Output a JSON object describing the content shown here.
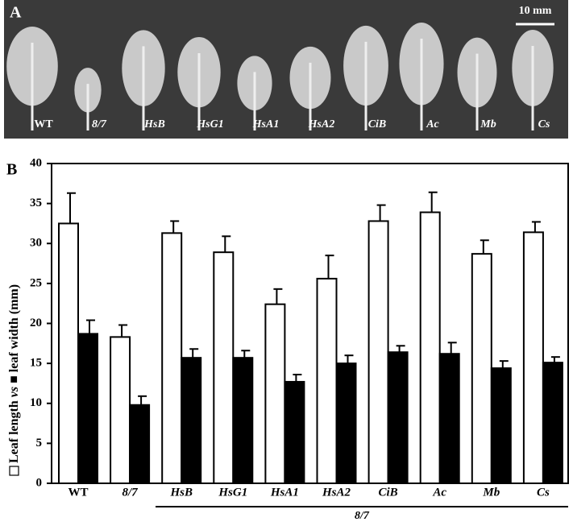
{
  "chart_data": {
    "type": "bar",
    "panel_labels": [
      "A",
      "B"
    ],
    "scale_bar": "10 mm",
    "categories": [
      "WT",
      "8/7",
      "HsB",
      "HsG1",
      "HsA1",
      "HsA2",
      "CiB",
      "Ac",
      "Mb",
      "Cs"
    ],
    "group_label": "8/7",
    "ylabel_joiner": "vs",
    "series": [
      {
        "name": "Leaf length",
        "color": "#ffffff",
        "values": [
          32.5,
          18.3,
          31.3,
          28.9,
          22.4,
          25.6,
          32.8,
          33.9,
          28.7,
          31.4
        ],
        "errors": [
          3.8,
          1.5,
          1.5,
          2.0,
          1.9,
          2.9,
          2.0,
          2.5,
          1.7,
          1.3
        ]
      },
      {
        "name": "leaf width (mm)",
        "color": "#000000",
        "values": [
          18.7,
          9.8,
          15.7,
          15.7,
          12.7,
          15.0,
          16.4,
          16.2,
          14.4,
          15.1
        ],
        "errors": [
          1.7,
          1.1,
          1.1,
          0.9,
          0.9,
          1.0,
          0.8,
          1.4,
          0.9,
          0.7
        ]
      }
    ],
    "ylim": [
      0,
      40
    ],
    "yticks": [
      0,
      5,
      10,
      15,
      20,
      25,
      30,
      35,
      40
    ]
  }
}
